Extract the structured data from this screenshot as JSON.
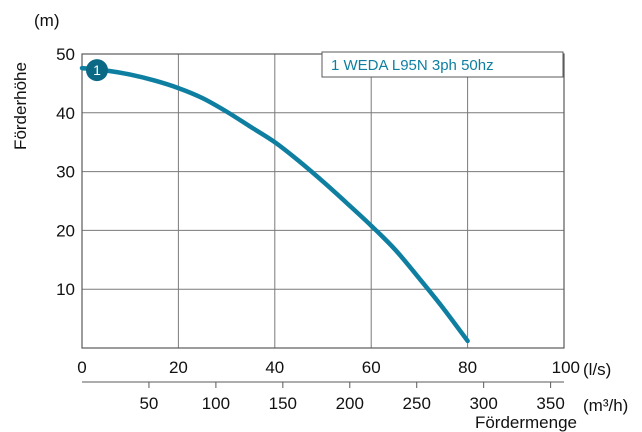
{
  "chart_data": {
    "type": "line",
    "ylabel": "Förderhöhe",
    "y_unit": "(m)",
    "x_unit_primary": "(l/s)",
    "x_unit_secondary": "(m³/h)",
    "xlabel": "Fördermenge",
    "xlim": [
      0,
      100
    ],
    "ylim": [
      0,
      50
    ],
    "x_ticks": [
      "0",
      "20",
      "40",
      "60",
      "80",
      "100"
    ],
    "x_secondary_ticks": [
      "50",
      "100",
      "150",
      "200",
      "250",
      "300",
      "350"
    ],
    "y_ticks": [
      "10",
      "20",
      "30",
      "40",
      "50"
    ],
    "grid": true,
    "legend_position": "top-right",
    "series": [
      {
        "name": "1 WEDA L95N 3ph 50hz",
        "marker": "1",
        "color": "#0e7fa1",
        "x": [
          0,
          5,
          10,
          15,
          20,
          25,
          30,
          35,
          40,
          45,
          50,
          55,
          60,
          65,
          70,
          75,
          80
        ],
        "y": [
          47.6,
          47.2,
          46.5,
          45.5,
          44.2,
          42.5,
          40.2,
          37.6,
          35.0,
          31.8,
          28.3,
          24.6,
          20.8,
          16.7,
          11.8,
          6.7,
          1.2
        ]
      }
    ]
  }
}
